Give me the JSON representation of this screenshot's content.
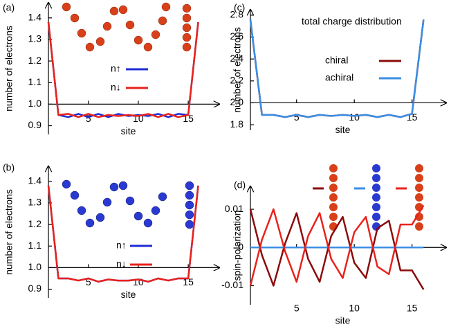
{
  "chart_data": [
    {
      "type": "line",
      "panel_label": "(a)",
      "xlabel": "site",
      "ylabel": "number of electrons",
      "x": [
        1,
        2,
        3,
        4,
        5,
        6,
        7,
        8,
        9,
        10,
        11,
        12,
        13,
        14,
        15,
        16
      ],
      "xlim": [
        1,
        17
      ],
      "xticks": [
        5,
        10,
        15
      ],
      "ylim": [
        0.86,
        1.47
      ],
      "yticks": [
        0.9,
        {
          "value": 1,
          "label": "1.0"
        },
        1.1,
        1.2,
        1.3,
        1.4
      ],
      "series": [
        {
          "name": "n↑",
          "color": "#1f2bd6",
          "values": [
            1.38,
            0.95,
            0.94,
            0.955,
            0.94,
            0.955,
            0.94,
            0.955,
            0.945,
            0.95,
            0.945,
            0.955,
            0.94,
            0.955,
            0.95,
            1.38
          ]
        },
        {
          "name": "n↓",
          "color": "#e8221b",
          "values": [
            1.38,
            0.95,
            0.955,
            0.94,
            0.955,
            0.94,
            0.95,
            0.945,
            0.95,
            0.945,
            0.955,
            0.94,
            0.955,
            0.94,
            0.95,
            1.38
          ]
        }
      ]
    },
    {
      "type": "line",
      "panel_label": "(c)",
      "xlabel": "site",
      "ylabel": "number of electrons",
      "annotation": "total charge distribution",
      "x": [
        1,
        2,
        3,
        4,
        5,
        6,
        7,
        8,
        9,
        10,
        11,
        12,
        13,
        14,
        15,
        16
      ],
      "xlim": [
        1,
        17
      ],
      "xticks": [
        5,
        10,
        15
      ],
      "ylim": [
        1.75,
        2.85
      ],
      "yticks": [
        1.8,
        {
          "value": 2,
          "label": "2.0"
        },
        2.2,
        2.4,
        2.6,
        2.8
      ],
      "series": [
        {
          "name": "chiral",
          "color": "#8b0a0a",
          "values": [
            2.76,
            1.89,
            1.89,
            1.87,
            1.89,
            1.87,
            1.89,
            1.88,
            1.89,
            1.88,
            1.89,
            1.87,
            1.89,
            1.87,
            1.9,
            2.76
          ]
        },
        {
          "name": "achiral",
          "color": "#3a8ee6",
          "values": [
            2.76,
            1.89,
            1.89,
            1.87,
            1.89,
            1.87,
            1.89,
            1.88,
            1.89,
            1.88,
            1.89,
            1.87,
            1.89,
            1.87,
            1.9,
            2.76
          ]
        }
      ]
    },
    {
      "type": "line",
      "panel_label": "(b)",
      "xlabel": "site",
      "ylabel": "number of electrons",
      "x": [
        1,
        2,
        3,
        4,
        5,
        6,
        7,
        8,
        9,
        10,
        11,
        12,
        13,
        14,
        15,
        16
      ],
      "xlim": [
        1,
        17
      ],
      "xticks": [
        5,
        10,
        15
      ],
      "ylim": [
        0.86,
        1.47
      ],
      "yticks": [
        0.9,
        {
          "value": 1,
          "label": "1.0"
        },
        1.1,
        1.2,
        1.3,
        1.4
      ],
      "series": [
        {
          "name": "n↑",
          "color": "#1f2bd6",
          "values": [
            1.38,
            0.95,
            0.95,
            0.94,
            0.95,
            0.935,
            0.945,
            0.94,
            0.94,
            0.945,
            0.935,
            0.95,
            0.94,
            0.95,
            0.95,
            1.38
          ]
        },
        {
          "name": "n↓",
          "color": "#e8221b",
          "values": [
            1.38,
            0.95,
            0.95,
            0.94,
            0.95,
            0.935,
            0.945,
            0.94,
            0.94,
            0.945,
            0.935,
            0.95,
            0.94,
            0.95,
            0.95,
            1.38
          ]
        }
      ]
    },
    {
      "type": "line",
      "panel_label": "(d)",
      "xlabel": "site",
      "ylabel": "spin-polarization",
      "x": [
        1,
        2,
        3,
        4,
        5,
        6,
        7,
        8,
        9,
        10,
        11,
        12,
        13,
        14,
        15,
        16
      ],
      "xlim": [
        1,
        17
      ],
      "xticks": [
        5,
        10,
        15
      ],
      "ylim": [
        -0.015,
        0.016
      ],
      "yticks": [
        0.01,
        0,
        -0.01
      ],
      "series": [
        {
          "color": "#8b0a0a",
          "values": [
            0.01,
            -0.002,
            -0.01,
            0.001,
            0.009,
            -0.003,
            -0.009,
            0.003,
            0.008,
            -0.004,
            -0.008,
            0.005,
            0.007,
            -0.006,
            -0.006,
            -0.011
          ]
        },
        {
          "color": "#3a8ee6",
          "values": [
            0,
            0,
            0,
            0,
            0,
            0,
            0,
            0,
            0,
            0,
            0,
            0,
            0,
            0,
            0,
            0
          ]
        },
        {
          "color": "#e8221b",
          "values": [
            -0.01,
            0.002,
            0.01,
            -0.001,
            -0.009,
            0.003,
            0.009,
            -0.003,
            -0.008,
            0.004,
            0.008,
            -0.005,
            -0.007,
            0.006,
            0.006,
            0.011
          ]
        }
      ]
    }
  ]
}
